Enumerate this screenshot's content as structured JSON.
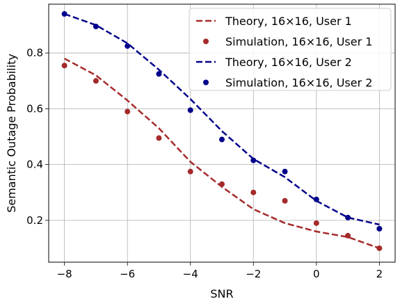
{
  "chart_data": {
    "type": "line",
    "xlabel": "SNR",
    "ylabel": "Semantic Outage Probability",
    "xlim": [
      -8.5,
      2.5
    ],
    "ylim": [
      0.05,
      0.975
    ],
    "xticks": [
      -8,
      -6,
      -4,
      -2,
      0,
      2
    ],
    "xtick_labels": [
      "−8",
      "−6",
      "−4",
      "−2",
      "0",
      "2"
    ],
    "yticks": [
      0.2,
      0.4,
      0.6,
      0.8
    ],
    "ytick_labels": [
      "0.2",
      "0.4",
      "0.6",
      "0.8"
    ],
    "grid": true,
    "legend_position": "top-right",
    "series": [
      {
        "name": "Theory, 16×16, User 1",
        "kind": "line",
        "style": "dashed",
        "color": "#a52a2a",
        "x": [
          -8,
          -7,
          -6,
          -5,
          -4,
          -3,
          -2,
          -1,
          0,
          1,
          2
        ],
        "y": [
          0.78,
          0.72,
          0.63,
          0.53,
          0.41,
          0.32,
          0.24,
          0.19,
          0.16,
          0.14,
          0.1
        ]
      },
      {
        "name": "Simulation, 16×16, User 1",
        "kind": "scatter",
        "color": "#a52a2a",
        "x": [
          -8,
          -7,
          -6,
          -5,
          -4,
          -3,
          -2,
          -1,
          0,
          1,
          2
        ],
        "y": [
          0.755,
          0.7,
          0.59,
          0.495,
          0.375,
          0.33,
          0.3,
          0.27,
          0.19,
          0.145,
          0.1
        ]
      },
      {
        "name": "Theory, 16×16, User 2",
        "kind": "line",
        "style": "dashed",
        "color": "#00008b",
        "x": [
          -8,
          -7,
          -6,
          -5,
          -4,
          -3,
          -2,
          -1,
          0,
          1,
          2
        ],
        "y": [
          0.94,
          0.9,
          0.835,
          0.74,
          0.635,
          0.52,
          0.42,
          0.355,
          0.27,
          0.21,
          0.185
        ]
      },
      {
        "name": "Simulation, 16×16, User 2",
        "kind": "scatter",
        "color": "#00008b",
        "x": [
          -8,
          -7,
          -6,
          -5,
          -4,
          -3,
          -2,
          -1,
          0,
          1,
          2
        ],
        "y": [
          0.94,
          0.895,
          0.825,
          0.725,
          0.595,
          0.49,
          0.415,
          0.375,
          0.275,
          0.21,
          0.17
        ]
      }
    ]
  }
}
